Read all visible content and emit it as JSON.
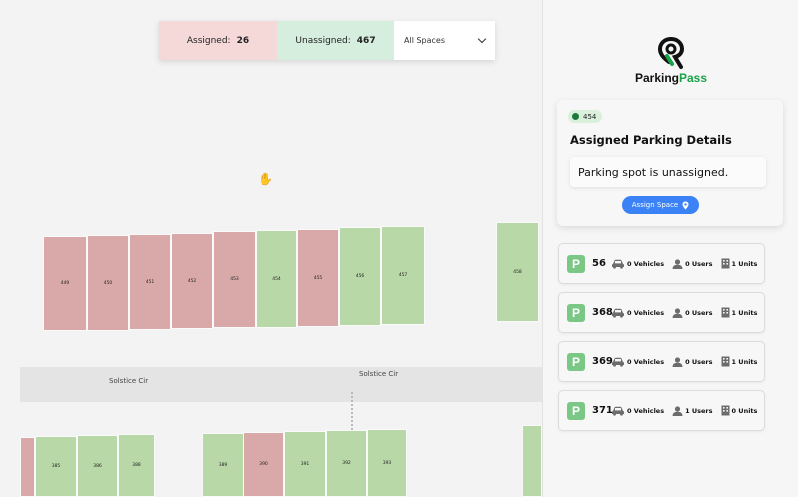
{
  "header": {
    "assigned_label": "Assigned:",
    "assigned_count": "26",
    "unassigned_label": "Unassigned:",
    "unassigned_count": "467",
    "filter_value": "All Spaces"
  },
  "map": {
    "roads": [
      "Solstice Cir",
      "Solstice Cir"
    ],
    "row1": [
      {
        "id": "449",
        "status": "assigned"
      },
      {
        "id": "450",
        "status": "assigned"
      },
      {
        "id": "451",
        "status": "assigned"
      },
      {
        "id": "452",
        "status": "assigned"
      },
      {
        "id": "453",
        "status": "assigned"
      },
      {
        "id": "454",
        "status": "unassigned"
      },
      {
        "id": "455",
        "status": "assigned"
      },
      {
        "id": "456",
        "status": "unassigned"
      },
      {
        "id": "457",
        "status": "unassigned"
      },
      {
        "id": "458",
        "status": "unassigned"
      }
    ],
    "row2": [
      {
        "id": "",
        "status": "assigned"
      },
      {
        "id": "385",
        "status": "unassigned"
      },
      {
        "id": "386",
        "status": "unassigned"
      },
      {
        "id": "388",
        "status": "unassigned"
      },
      {
        "id": "389",
        "status": "unassigned"
      },
      {
        "id": "390",
        "status": "assigned"
      },
      {
        "id": "391",
        "status": "unassigned"
      },
      {
        "id": "392",
        "status": "unassigned"
      },
      {
        "id": "393",
        "status": "unassigned"
      },
      {
        "id": "",
        "status": "unassigned"
      }
    ],
    "colors": {
      "assigned": "#d9a9a9",
      "unassigned": "#b8d8a8"
    }
  },
  "panel": {
    "logo": {
      "word1": "Parking",
      "word2": "Pass"
    },
    "details": {
      "badge": "454",
      "title": "Assigned Parking Details",
      "message": "Parking spot is unassigned.",
      "button": "Assign Space"
    },
    "lots": [
      {
        "number": "56",
        "vehicles": "0 Vehicles",
        "users": "0 Users",
        "units": "1 Units"
      },
      {
        "number": "368",
        "vehicles": "0 Vehicles",
        "users": "0 Users",
        "units": "1 Units"
      },
      {
        "number": "369",
        "vehicles": "0 Vehicles",
        "users": "0 Users",
        "units": "1 Units"
      },
      {
        "number": "371",
        "vehicles": "0 Vehicles",
        "users": "1 Users",
        "units": "0 Units"
      }
    ],
    "accent": "#3b82f6",
    "brand_green": "#18a349"
  }
}
